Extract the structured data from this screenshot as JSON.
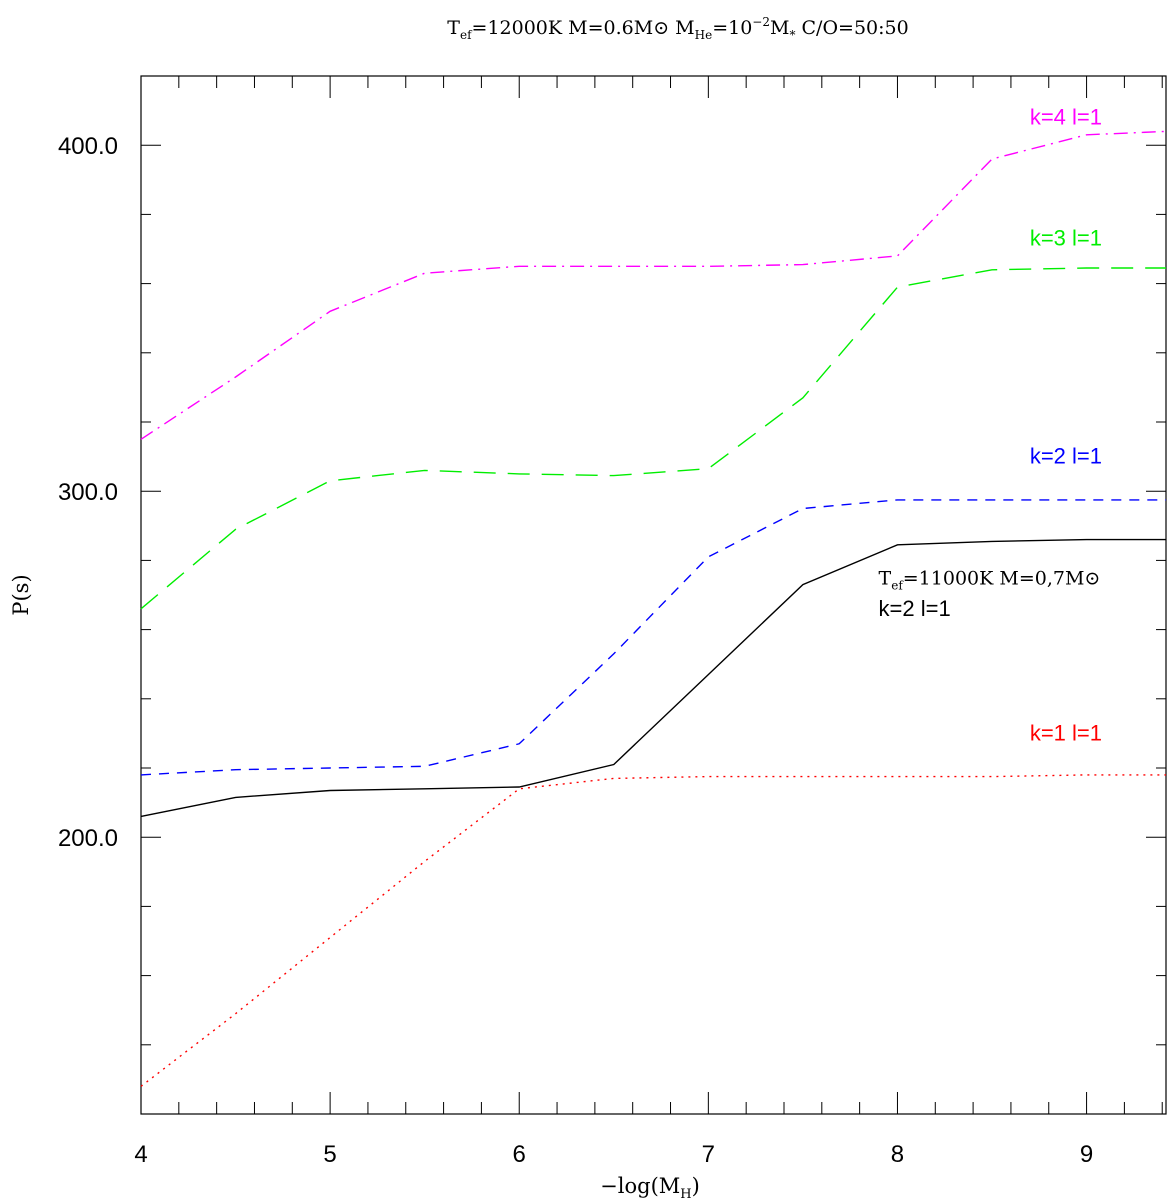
{
  "chart_data": {
    "type": "line",
    "title": {
      "t": "T",
      "t_sub": "ef",
      "a": "=12000K  M=0.6M",
      "sun": "⊙",
      "b": "  M",
      "he_sub": "He",
      "c": "=10",
      "exp": "−2",
      "d": "M",
      "star_sub": "*",
      "e": "  C/O=50:50"
    },
    "xlabel": {
      "main": "−log(M",
      "sub": "H",
      "close": ")"
    },
    "ylabel": "P(s)",
    "xlim": [
      4,
      9.42
    ],
    "ylim": [
      120,
      420
    ],
    "x_ticks": [
      4,
      5,
      6,
      7,
      8,
      9
    ],
    "x_tick_labels": [
      "4",
      "5",
      "6",
      "7",
      "8",
      "9"
    ],
    "y_ticks": [
      200,
      300,
      400
    ],
    "y_tick_labels": [
      "200.0",
      "300.0",
      "400.0"
    ],
    "grid": false,
    "series": [
      {
        "name": "k=4 l=1",
        "color": "#ff00ff",
        "style": "dashdot",
        "x": [
          4,
          4.5,
          5,
          5.5,
          6,
          6.5,
          7,
          7.5,
          8,
          8.5,
          9,
          9.42
        ],
        "y": [
          315,
          333,
          352,
          363,
          365,
          365,
          365,
          365.5,
          368,
          396,
          403,
          404
        ]
      },
      {
        "name": "k=3 l=1",
        "color": "#00ee00",
        "style": "longdash",
        "x": [
          4,
          4.5,
          5,
          5.5,
          6,
          6.5,
          7,
          7.5,
          8,
          8.5,
          9,
          9.42
        ],
        "y": [
          266,
          289,
          303,
          306,
          305,
          304.5,
          306.5,
          327,
          359,
          364,
          364.5,
          364.5
        ]
      },
      {
        "name": "k=2 l=1",
        "color": "#0000ff",
        "style": "dash",
        "x": [
          4,
          4.5,
          5,
          5.5,
          6,
          6.5,
          7,
          7.5,
          8,
          8.5,
          9,
          9.42
        ],
        "y": [
          218,
          219.5,
          220,
          220.5,
          227,
          253,
          281,
          295,
          297.5,
          297.5,
          297.5,
          297.5
        ]
      },
      {
        "name": "k=1 l=1",
        "color": "#ff0000",
        "style": "dot",
        "x": [
          4,
          4.5,
          5,
          5.5,
          6,
          6.5,
          7,
          7.5,
          8,
          8.5,
          9,
          9.42
        ],
        "y": [
          128,
          149,
          171,
          193,
          214,
          217,
          217.5,
          217.5,
          217.5,
          217.5,
          218,
          218
        ]
      },
      {
        "name": "k=2 l=1",
        "color": "#000000",
        "style": "solid",
        "x": [
          4,
          4.5,
          5,
          5.5,
          6,
          6.5,
          7,
          7.5,
          8,
          8.5,
          9,
          9.42
        ],
        "y": [
          206,
          211.5,
          213.5,
          214,
          214.5,
          221,
          247,
          273,
          284.5,
          285.5,
          286,
          286
        ]
      }
    ],
    "annotations": [
      {
        "text": "k=4 l=1",
        "color": "#ff00ff",
        "x": 8.7,
        "y": 406
      },
      {
        "text": "k=3 l=1",
        "color": "#00ee00",
        "x": 8.7,
        "y": 371
      },
      {
        "text": "k=2 l=1",
        "color": "#0000ff",
        "x": 8.7,
        "y": 308
      },
      {
        "text": "k=1 l=1",
        "color": "#ff0000",
        "x": 8.7,
        "y": 228
      },
      {
        "text": "k=2 l=1",
        "color": "#000000",
        "x": 7.9,
        "y": 264
      }
    ],
    "black_note": {
      "t": "T",
      "t_sub": "ef",
      "a": "=11000K  M=0,7M",
      "sun": "⊙",
      "x": 7.9,
      "y": 273
    }
  }
}
